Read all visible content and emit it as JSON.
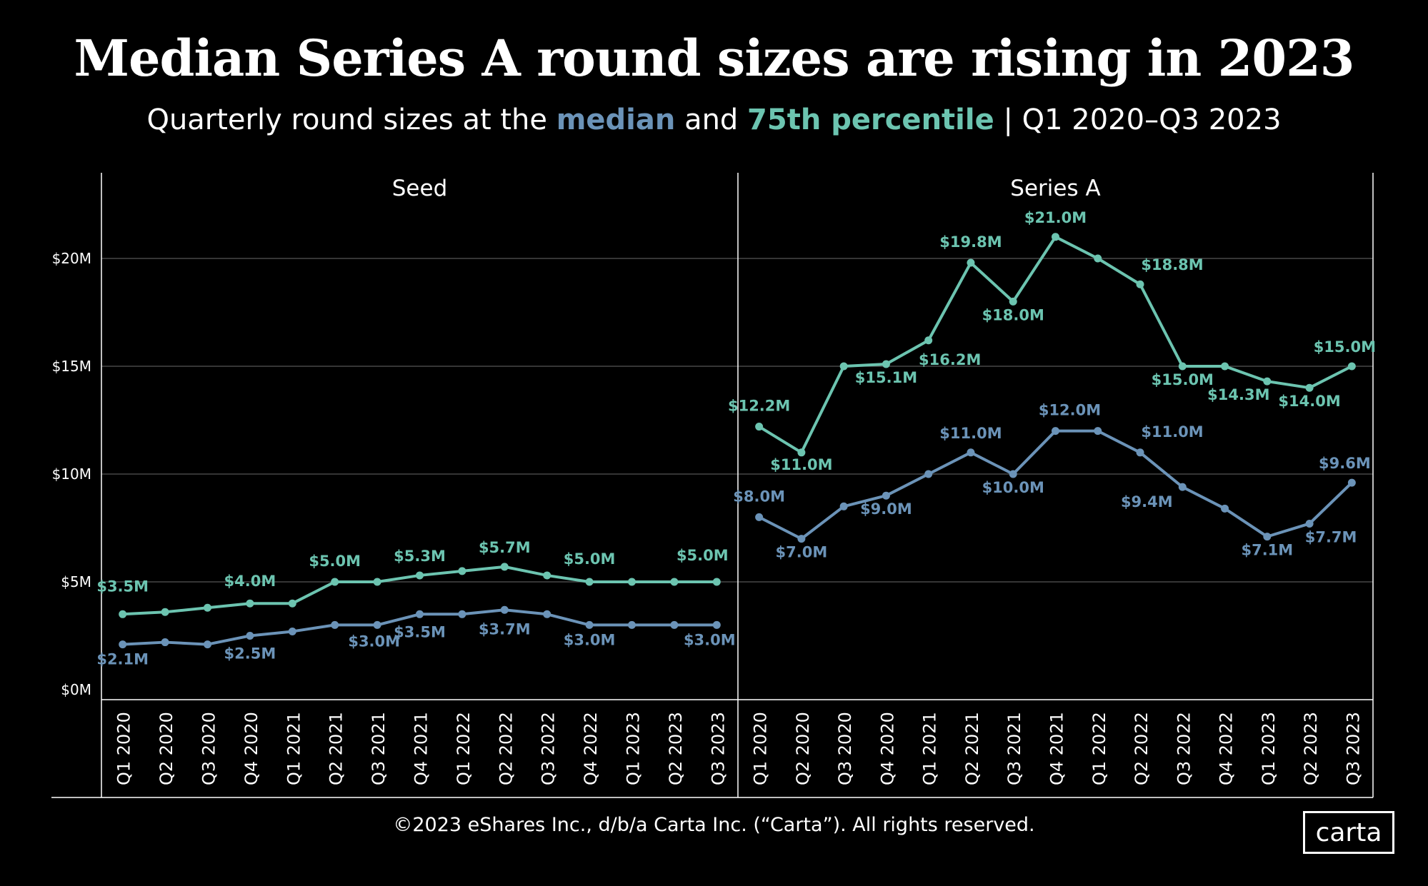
{
  "title": "Median Series A round sizes are rising in 2023",
  "subtitle": {
    "prefix": "Quarterly round sizes at the",
    "median": "median",
    "and": "and",
    "p75": "75th percentile",
    "suffix": "| Q1 2020–Q3 2023"
  },
  "footer": "©2023 eShares Inc., d/b/a Carta Inc. (“Carta”). All rights reserved.",
  "logo": "carta",
  "colors": {
    "median": "#6b93b8",
    "p75": "#6cc4b0",
    "grid": "#555555",
    "text": "#ffffff"
  },
  "chart_data": {
    "type": "line",
    "y_ticks": [
      0,
      5,
      10,
      15,
      20
    ],
    "y_tick_labels": [
      "$0M",
      "$5M",
      "$10M",
      "$15M",
      "$20M"
    ],
    "ylim": [
      0,
      21.5
    ],
    "categories": [
      "Q1 2020",
      "Q2 2020",
      "Q3 2020",
      "Q4 2020",
      "Q1 2021",
      "Q2 2021",
      "Q3 2021",
      "Q4 2021",
      "Q1 2022",
      "Q2 2022",
      "Q3 2022",
      "Q4 2022",
      "Q1 2023",
      "Q2 2023",
      "Q3 2023"
    ],
    "panels": [
      {
        "name": "Seed",
        "series": [
          {
            "name": "75th percentile",
            "values": [
              3.5,
              3.6,
              3.8,
              4.0,
              4.0,
              5.0,
              5.0,
              5.3,
              5.5,
              5.7,
              5.3,
              5.0,
              5.0,
              5.0,
              5.0
            ],
            "labels": [
              "$3.5M",
              "",
              "",
              "$4.0M",
              "",
              "$5.0M",
              "",
              "$5.3M",
              "",
              "$5.7M",
              "",
              "$5.0M",
              "",
              "",
              "$5.0M"
            ]
          },
          {
            "name": "median",
            "values": [
              2.1,
              2.2,
              2.1,
              2.5,
              2.7,
              3.0,
              3.0,
              3.5,
              3.5,
              3.7,
              3.5,
              3.0,
              3.0,
              3.0,
              3.0
            ],
            "labels": [
              "$2.1M",
              "",
              "",
              "$2.5M",
              "",
              "$3.0M",
              "",
              "$3.5M",
              "",
              "$3.7M",
              "",
              "$3.0M",
              "",
              "",
              "$3.0M"
            ]
          }
        ]
      },
      {
        "name": "Series A",
        "series": [
          {
            "name": "75th percentile",
            "values": [
              12.2,
              11.0,
              15.0,
              15.1,
              16.2,
              19.8,
              18.0,
              21.0,
              20.0,
              18.8,
              15.0,
              15.0,
              14.3,
              14.0,
              15.0
            ],
            "labels": [
              "$12.2M",
              "$11.0M",
              "",
              "$15.1M",
              "$16.2M",
              "$19.8M",
              "$18.0M",
              "$21.0M",
              "",
              "$18.8M",
              "$15.0M",
              "",
              "$14.3M",
              "$14.0M",
              "$15.0M"
            ]
          },
          {
            "name": "median",
            "values": [
              8.0,
              7.0,
              8.5,
              9.0,
              10.0,
              11.0,
              10.0,
              12.0,
              12.0,
              11.0,
              9.4,
              8.4,
              7.1,
              7.7,
              9.6
            ],
            "labels": [
              "$8.0M",
              "$7.0M",
              "",
              "$9.0M",
              "",
              "$11.0M",
              "$10.0M",
              "$12.0M",
              "",
              "$11.0M",
              "$9.4M",
              "",
              "$7.1M",
              "$7.7M",
              "$9.6M"
            ]
          }
        ]
      }
    ]
  }
}
